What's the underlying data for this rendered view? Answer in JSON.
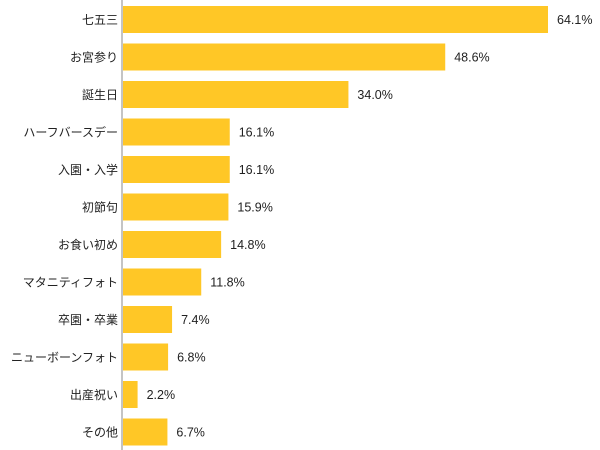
{
  "chart_data": {
    "type": "bar",
    "orientation": "horizontal",
    "categories": [
      "七五三",
      "お宮参り",
      "誕生日",
      "ハーフバースデー",
      "入園・入学",
      "初節句",
      "お食い初め",
      "マタニティフォト",
      "卒園・卒業",
      "ニューボーンフォト",
      "出産祝い",
      "その他"
    ],
    "values": [
      64.1,
      48.6,
      34.0,
      16.1,
      16.1,
      15.9,
      14.8,
      11.8,
      7.4,
      6.8,
      2.2,
      6.7
    ],
    "value_labels": [
      "64.1%",
      "48.6%",
      "34.0%",
      "16.1%",
      "16.1%",
      "15.9%",
      "14.8%",
      "11.8%",
      "7.4%",
      "6.8%",
      "2.2%",
      "6.7%"
    ],
    "title": "",
    "xlabel": "",
    "ylabel": "",
    "xlim": [
      0,
      64.1
    ],
    "grid": false,
    "legend": "none",
    "bar_color": "#FFC726",
    "axis_color": "#888888"
  }
}
